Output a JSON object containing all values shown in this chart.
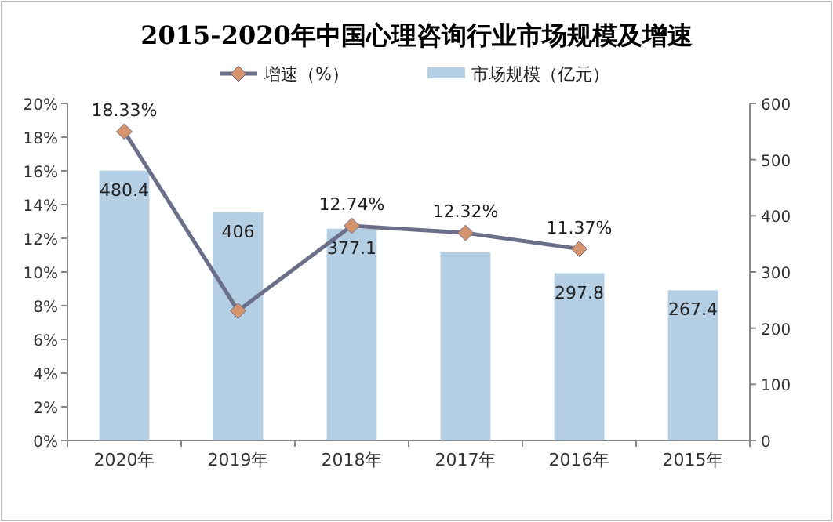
{
  "chart_data": {
    "type": "bar",
    "title": "2015-2020年中国心理咨询行业市场规模及增速",
    "categories": [
      "2020年",
      "2019年",
      "2018年",
      "2017年",
      "2016年",
      "2015年"
    ],
    "series": [
      {
        "name": "增速（%）",
        "type": "line",
        "color": "#6b6f8a",
        "marker": "diamond",
        "values": [
          18.33,
          7.7,
          12.74,
          12.32,
          11.37,
          null
        ],
        "value_labels": [
          "18.33%",
          null,
          "12.74%",
          "12.32%",
          "11.37%",
          null
        ]
      },
      {
        "name": "市场规模（亿元）",
        "axis": "y2",
        "color": "#b4cfe3",
        "values": [
          480.4,
          406,
          377.1,
          335,
          297.8,
          267.4
        ],
        "value_labels": [
          "480.4",
          "406",
          "377.1",
          null,
          "297.8",
          "267.4"
        ]
      }
    ],
    "ylim": [
      0,
      20
    ],
    "yticks": [
      {
        "value": 0,
        "label": "0%"
      },
      {
        "value": 2,
        "label": "2%"
      },
      {
        "value": 4,
        "label": "4%"
      },
      {
        "value": 6,
        "label": "6%"
      },
      {
        "value": 8,
        "label": "8%"
      },
      {
        "value": 10,
        "label": "10%"
      },
      {
        "value": 12,
        "label": "12%"
      },
      {
        "value": 14,
        "label": "14%"
      },
      {
        "value": 16,
        "label": "16%"
      },
      {
        "value": 18,
        "label": "18%"
      },
      {
        "value": 20,
        "label": "20%"
      }
    ],
    "y2lim": [
      0,
      600
    ],
    "y2ticks": [
      0,
      100,
      200,
      300,
      400,
      500,
      600
    ],
    "legend": "top",
    "grid": false
  }
}
